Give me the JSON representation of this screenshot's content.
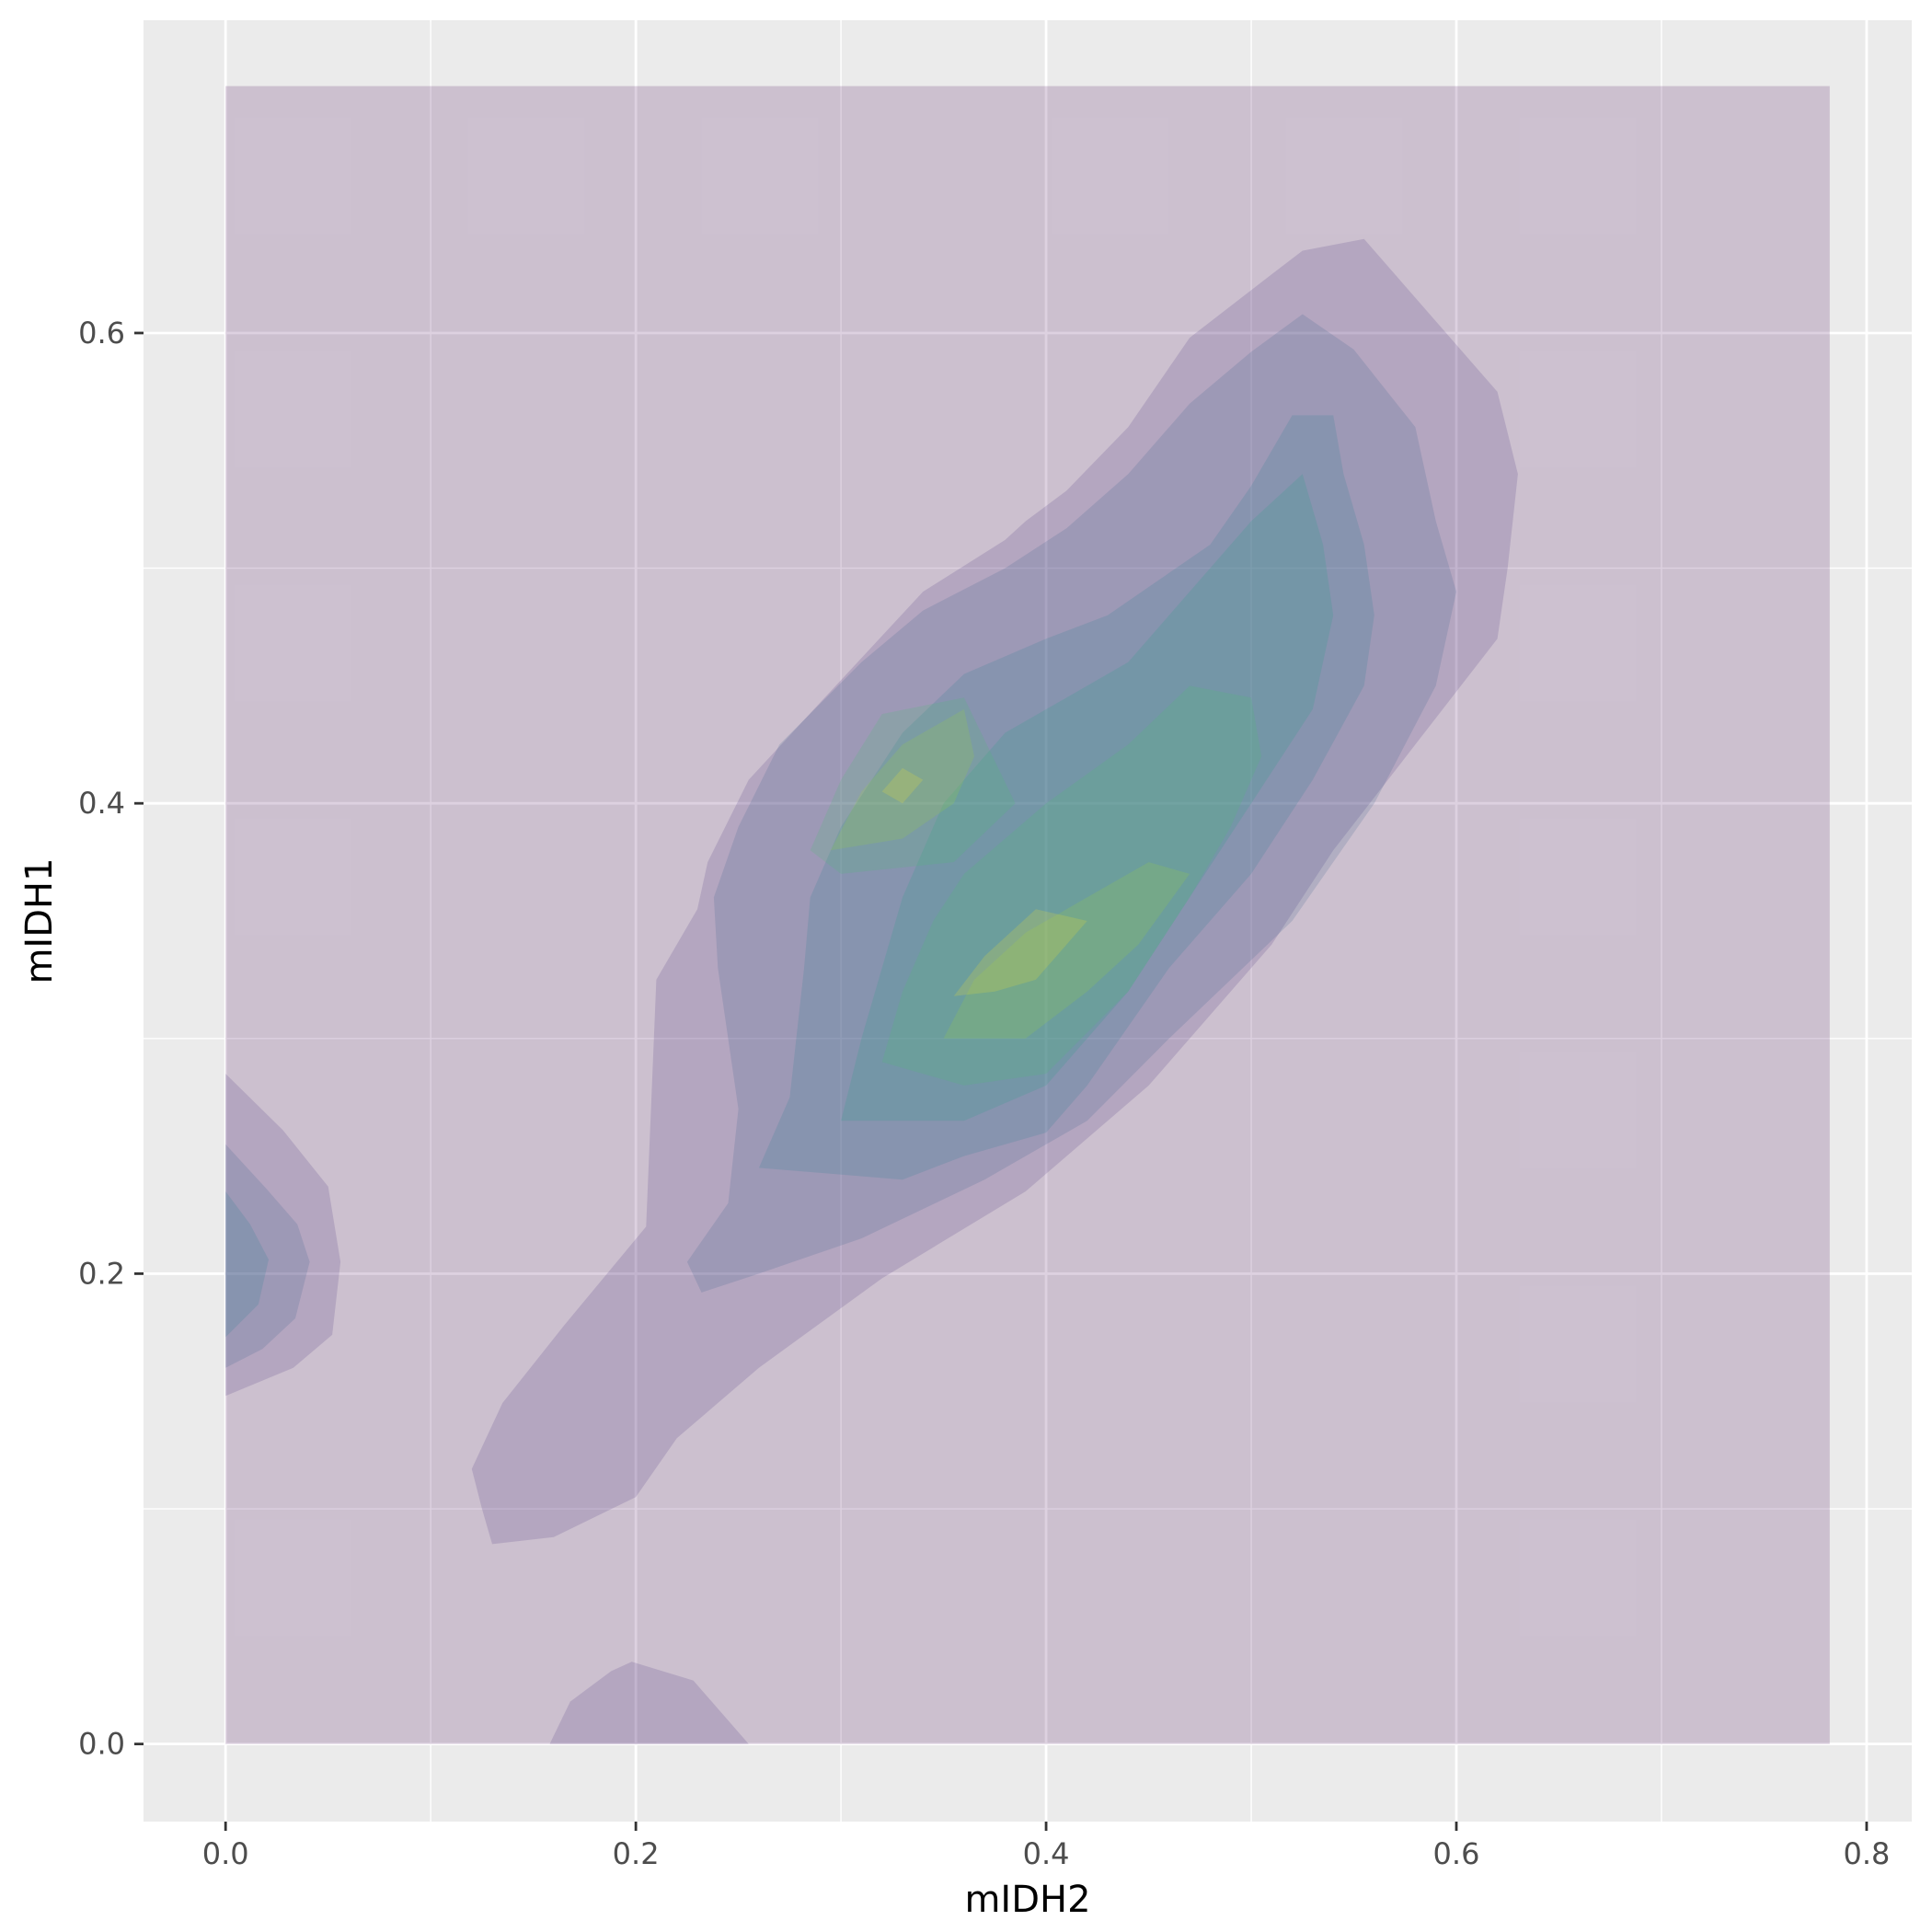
{
  "chart_data": {
    "type": "filled-density-contour",
    "xlabel": "mIDH2",
    "ylabel": "mIDH1",
    "xlim": [
      -0.04,
      0.822
    ],
    "ylim": [
      -0.033,
      0.733
    ],
    "grid": true,
    "legend": "none",
    "x_ticks": [
      {
        "value": 0.0,
        "label": "0.0"
      },
      {
        "value": 0.2,
        "label": "0.2"
      },
      {
        "value": 0.4,
        "label": "0.4"
      },
      {
        "value": 0.6,
        "label": "0.6"
      },
      {
        "value": 0.8,
        "label": "0.8"
      }
    ],
    "y_ticks": [
      {
        "value": 0.0,
        "label": "0.0"
      },
      {
        "value": 0.2,
        "label": "0.2"
      },
      {
        "value": 0.4,
        "label": "0.4"
      },
      {
        "value": 0.6,
        "label": "0.6"
      }
    ],
    "x_minor": [
      0.1,
      0.3,
      0.5,
      0.7
    ],
    "y_minor": [
      0.1,
      0.3,
      0.5
    ],
    "colors": {
      "panel": "#ebebeb",
      "grid": "#ffffff",
      "level_palette": [
        "#440154",
        "#46337e",
        "#365c8d",
        "#277f8e",
        "#1fa187",
        "#4ac16d",
        "#9fda3a",
        "#fde725"
      ],
      "fill_opacity": 0.18
    },
    "density_region": {
      "x": [
        0.0,
        0.782
      ],
      "y": [
        0.0,
        0.705
      ]
    },
    "levels": [
      {
        "level": 2,
        "polygons": [
          [
            [
              0.12,
              0.117
            ],
            [
              0.135,
              0.145
            ],
            [
              0.165,
              0.178
            ],
            [
              0.185,
              0.199
            ],
            [
              0.205,
              0.22
            ],
            [
              0.21,
              0.325
            ],
            [
              0.23,
              0.355
            ],
            [
              0.235,
              0.375
            ],
            [
              0.255,
              0.41
            ],
            [
              0.29,
              0.443
            ],
            [
              0.34,
              0.49
            ],
            [
              0.38,
              0.512
            ],
            [
              0.39,
              0.52
            ],
            [
              0.41,
              0.533
            ],
            [
              0.44,
              0.56
            ],
            [
              0.47,
              0.598
            ],
            [
              0.51,
              0.625
            ],
            [
              0.525,
              0.635
            ],
            [
              0.555,
              0.64
            ],
            [
              0.58,
              0.615
            ],
            [
              0.62,
              0.575
            ],
            [
              0.63,
              0.54
            ],
            [
              0.625,
              0.5
            ],
            [
              0.62,
              0.47
            ],
            [
              0.58,
              0.425
            ],
            [
              0.54,
              0.38
            ],
            [
              0.51,
              0.34
            ],
            [
              0.45,
              0.28
            ],
            [
              0.39,
              0.235
            ],
            [
              0.32,
              0.198
            ],
            [
              0.26,
              0.16
            ],
            [
              0.22,
              0.13
            ],
            [
              0.2,
              0.105
            ],
            [
              0.16,
              0.088
            ],
            [
              0.13,
              0.085
            ],
            [
              0.125,
              0.1
            ]
          ],
          [
            [
              0.158,
              0.0
            ],
            [
              0.168,
              0.018
            ],
            [
              0.188,
              0.031
            ],
            [
              0.198,
              0.035
            ],
            [
              0.228,
              0.027
            ],
            [
              0.255,
              0.0
            ]
          ],
          [
            [
              0.0,
              0.285
            ],
            [
              0.028,
              0.261
            ],
            [
              0.05,
              0.237
            ],
            [
              0.056,
              0.205
            ],
            [
              0.052,
              0.174
            ],
            [
              0.033,
              0.16
            ],
            [
              0.0,
              0.148
            ]
          ]
        ]
      },
      {
        "level": 3,
        "polygons": [
          [
            [
              0.225,
              0.205
            ],
            [
              0.245,
              0.23
            ],
            [
              0.25,
              0.27
            ],
            [
              0.24,
              0.33
            ],
            [
              0.238,
              0.36
            ],
            [
              0.25,
              0.39
            ],
            [
              0.27,
              0.425
            ],
            [
              0.31,
              0.46
            ],
            [
              0.34,
              0.482
            ],
            [
              0.38,
              0.5
            ],
            [
              0.41,
              0.517
            ],
            [
              0.44,
              0.54
            ],
            [
              0.47,
              0.57
            ],
            [
              0.5,
              0.592
            ],
            [
              0.525,
              0.608
            ],
            [
              0.55,
              0.593
            ],
            [
              0.58,
              0.56
            ],
            [
              0.59,
              0.52
            ],
            [
              0.6,
              0.49
            ],
            [
              0.59,
              0.45
            ],
            [
              0.56,
              0.4
            ],
            [
              0.52,
              0.35
            ],
            [
              0.46,
              0.3
            ],
            [
              0.42,
              0.265
            ],
            [
              0.37,
              0.24
            ],
            [
              0.31,
              0.215
            ],
            [
              0.26,
              0.2
            ],
            [
              0.232,
              0.192
            ]
          ],
          [
            [
              0.0,
              0.255
            ],
            [
              0.02,
              0.236
            ],
            [
              0.035,
              0.221
            ],
            [
              0.041,
              0.205
            ],
            [
              0.034,
              0.181
            ],
            [
              0.018,
              0.168
            ],
            [
              0.0,
              0.16
            ]
          ]
        ]
      },
      {
        "level": 4,
        "polygons": [
          [
            [
              0.26,
              0.245
            ],
            [
              0.275,
              0.275
            ],
            [
              0.282,
              0.33
            ],
            [
              0.285,
              0.36
            ],
            [
              0.3,
              0.39
            ],
            [
              0.33,
              0.43
            ],
            [
              0.36,
              0.455
            ],
            [
              0.4,
              0.47
            ],
            [
              0.43,
              0.48
            ],
            [
              0.48,
              0.51
            ],
            [
              0.5,
              0.535
            ],
            [
              0.52,
              0.565
            ],
            [
              0.54,
              0.565
            ],
            [
              0.545,
              0.54
            ],
            [
              0.555,
              0.51
            ],
            [
              0.56,
              0.48
            ],
            [
              0.555,
              0.45
            ],
            [
              0.53,
              0.41
            ],
            [
              0.5,
              0.37
            ],
            [
              0.46,
              0.33
            ],
            [
              0.42,
              0.28
            ],
            [
              0.4,
              0.26
            ],
            [
              0.36,
              0.25
            ],
            [
              0.33,
              0.24
            ]
          ],
          [
            [
              0.0,
              0.235
            ],
            [
              0.012,
              0.221
            ],
            [
              0.021,
              0.206
            ],
            [
              0.016,
              0.187
            ],
            [
              0.0,
              0.173
            ]
          ]
        ]
      },
      {
        "level": 5,
        "polygons": [
          [
            [
              0.3,
              0.265
            ],
            [
              0.31,
              0.3
            ],
            [
              0.32,
              0.33
            ],
            [
              0.33,
              0.36
            ],
            [
              0.35,
              0.4
            ],
            [
              0.38,
              0.43
            ],
            [
              0.41,
              0.445
            ],
            [
              0.44,
              0.46
            ],
            [
              0.47,
              0.49
            ],
            [
              0.5,
              0.52
            ],
            [
              0.525,
              0.54
            ],
            [
              0.535,
              0.51
            ],
            [
              0.54,
              0.48
            ],
            [
              0.53,
              0.44
            ],
            [
              0.5,
              0.4
            ],
            [
              0.47,
              0.36
            ],
            [
              0.44,
              0.32
            ],
            [
              0.4,
              0.28
            ],
            [
              0.36,
              0.265
            ]
          ]
        ]
      },
      {
        "level": 6,
        "polygons": [
          [
            [
              0.32,
              0.29
            ],
            [
              0.33,
              0.32
            ],
            [
              0.345,
              0.35
            ],
            [
              0.36,
              0.37
            ],
            [
              0.4,
              0.4
            ],
            [
              0.44,
              0.425
            ],
            [
              0.47,
              0.45
            ],
            [
              0.5,
              0.445
            ],
            [
              0.505,
              0.42
            ],
            [
              0.49,
              0.39
            ],
            [
              0.47,
              0.36
            ],
            [
              0.44,
              0.32
            ],
            [
              0.4,
              0.285
            ],
            [
              0.36,
              0.28
            ]
          ],
          [
            [
              0.285,
              0.38
            ],
            [
              0.3,
              0.41
            ],
            [
              0.32,
              0.438
            ],
            [
              0.36,
              0.445
            ],
            [
              0.385,
              0.4
            ],
            [
              0.355,
              0.375
            ],
            [
              0.3,
              0.37
            ]
          ]
        ]
      },
      {
        "level": 7,
        "polygons": [
          [
            [
              0.35,
              0.3
            ],
            [
              0.365,
              0.325
            ],
            [
              0.39,
              0.345
            ],
            [
              0.42,
              0.36
            ],
            [
              0.45,
              0.375
            ],
            [
              0.47,
              0.37
            ],
            [
              0.445,
              0.34
            ],
            [
              0.42,
              0.32
            ],
            [
              0.39,
              0.3
            ]
          ],
          [
            [
              0.295,
              0.38
            ],
            [
              0.31,
              0.405
            ],
            [
              0.33,
              0.425
            ],
            [
              0.36,
              0.44
            ],
            [
              0.365,
              0.42
            ],
            [
              0.355,
              0.4
            ],
            [
              0.33,
              0.385
            ]
          ]
        ]
      },
      {
        "level": 8,
        "polygons": [
          [
            [
              0.355,
              0.318
            ],
            [
              0.37,
              0.335
            ],
            [
              0.395,
              0.355
            ],
            [
              0.42,
              0.35
            ],
            [
              0.395,
              0.325
            ],
            [
              0.375,
              0.32
            ]
          ],
          [
            [
              0.32,
              0.405
            ],
            [
              0.33,
              0.415
            ],
            [
              0.34,
              0.41
            ],
            [
              0.33,
              0.4
            ]
          ]
        ]
      }
    ]
  }
}
